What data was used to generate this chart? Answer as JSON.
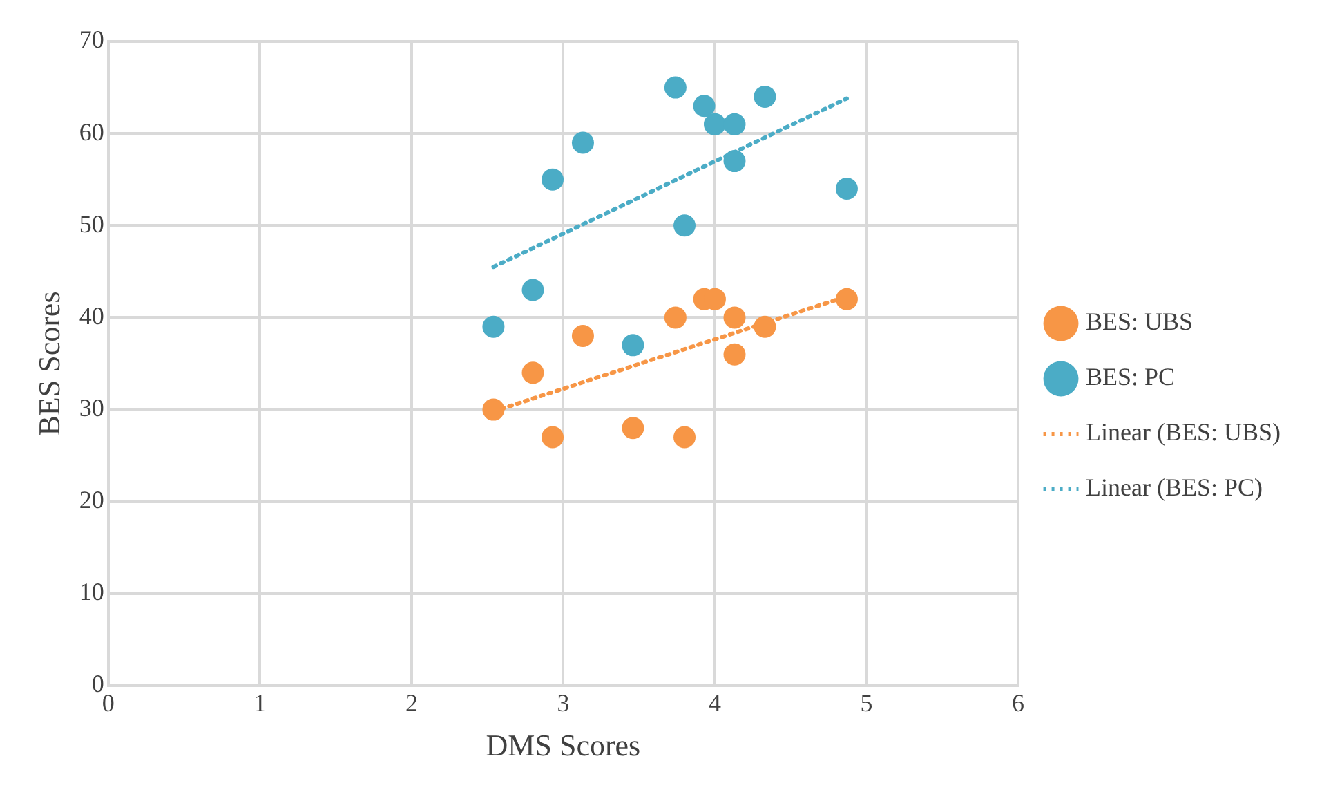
{
  "chart_data": {
    "type": "scatter",
    "xlabel": "DMS Scores",
    "ylabel": "BES Scores",
    "xlim": [
      0,
      6
    ],
    "xticks": [
      0,
      1,
      2,
      3,
      4,
      5,
      6
    ],
    "ylim": [
      0,
      70
    ],
    "yticks": [
      0,
      10,
      20,
      30,
      40,
      50,
      60,
      70
    ],
    "grid": true,
    "legend": "right",
    "marker": "circle",
    "series": [
      {
        "name": "BES: UBS",
        "color": "#f79646",
        "x": [
          2.54,
          2.8,
          2.93,
          3.13,
          3.46,
          3.74,
          3.8,
          3.93,
          4.0,
          4.13,
          4.13,
          4.33,
          4.87
        ],
        "values": [
          30,
          34,
          27,
          38,
          28,
          40,
          27,
          42,
          42,
          40,
          36,
          39,
          42
        ]
      },
      {
        "name": "BES: PC",
        "color": "#4bacc6",
        "x": [
          2.54,
          2.8,
          2.93,
          3.13,
          3.46,
          3.74,
          3.8,
          3.93,
          4.0,
          4.13,
          4.13,
          4.33,
          4.87
        ],
        "values": [
          39,
          43,
          55,
          59,
          37,
          65,
          50,
          63,
          61,
          61,
          57,
          64,
          54
        ]
      },
      {
        "name": "Linear (BES: UBS)",
        "type": "line",
        "line_style": "dotted",
        "marker": "none",
        "color": "#f79646",
        "x": [
          2.54,
          4.87
        ],
        "values": [
          29.8,
          42.3
        ]
      },
      {
        "name": "Linear (BES: PC)",
        "type": "line",
        "line_style": "dotted",
        "marker": "none",
        "color": "#4bacc6",
        "x": [
          2.54,
          4.87
        ],
        "values": [
          45.5,
          63.8
        ]
      }
    ]
  }
}
